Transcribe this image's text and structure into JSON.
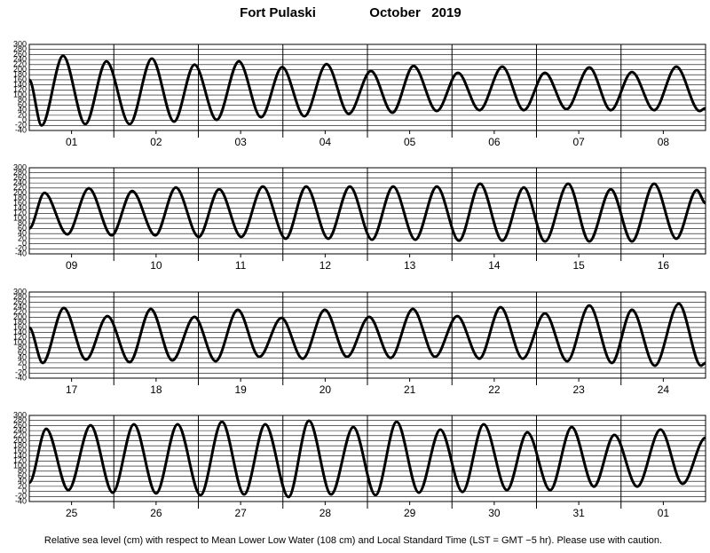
{
  "title": "Fort Pulaski",
  "date": "October   2019",
  "caption": "Relative sea level (cm) with respect to Mean Lower Low Water (108 cm) and Local Standard Time (LST = GMT −5 hr). Please use with caution.",
  "chart_data": [
    {
      "type": "line",
      "color": "#000000",
      "xlim": [
        0,
        192
      ],
      "ylim": [
        -40,
        300
      ],
      "yticks": [
        -40,
        -20,
        0,
        20,
        40,
        60,
        80,
        100,
        120,
        140,
        160,
        180,
        200,
        220,
        240,
        260,
        280,
        300
      ],
      "xticks": [
        {
          "value": 12,
          "label": "01"
        },
        {
          "value": 36,
          "label": "02"
        },
        {
          "value": 60,
          "label": "03"
        },
        {
          "value": 84,
          "label": "04"
        },
        {
          "value": 108,
          "label": "05"
        },
        {
          "value": 132,
          "label": "06"
        },
        {
          "value": 156,
          "label": "07"
        },
        {
          "value": 180,
          "label": "08"
        }
      ],
      "x": [
        0,
        3.5,
        9.6,
        15.9,
        21.9,
        28.5,
        34.8,
        41.1,
        46.9,
        53.2,
        59.5,
        65.8,
        71.8,
        78.1,
        84.4,
        90.7,
        97.0,
        103.1,
        109.1,
        115.7,
        121.7,
        127.8,
        134.3,
        140.4,
        146.4,
        152.5,
        159.0,
        165.1,
        171.1,
        177.4,
        183.7,
        190.3,
        192
      ],
      "values": [
        160,
        -20,
        255,
        -15,
        233,
        -15,
        244,
        -5,
        220,
        2,
        233,
        12,
        210,
        16,
        222,
        26,
        195,
        30,
        215,
        37,
        188,
        40,
        212,
        40,
        188,
        44,
        209,
        40,
        191,
        40,
        212,
        37,
        48
      ]
    },
    {
      "type": "line",
      "color": "#000000",
      "xlim": [
        0,
        192
      ],
      "ylim": [
        -40,
        300
      ],
      "yticks": [
        -40,
        -20,
        0,
        20,
        40,
        60,
        80,
        100,
        120,
        140,
        160,
        180,
        200,
        220,
        240,
        260,
        280,
        300
      ],
      "xticks": [
        {
          "value": 12,
          "label": "09"
        },
        {
          "value": 36,
          "label": "10"
        },
        {
          "value": 60,
          "label": "11"
        },
        {
          "value": 84,
          "label": "12"
        },
        {
          "value": 108,
          "label": "13"
        },
        {
          "value": 132,
          "label": "14"
        },
        {
          "value": 156,
          "label": "15"
        },
        {
          "value": 180,
          "label": "16"
        }
      ],
      "x": [
        0,
        4.3,
        10.8,
        16.9,
        23.4,
        29.2,
        35.8,
        41.6,
        48.1,
        53.9,
        60.2,
        66.3,
        72.8,
        78.6,
        84.9,
        91.0,
        97.3,
        103.3,
        109.6,
        115.7,
        122.0,
        128.0,
        134.3,
        140.4,
        146.4,
        153.0,
        159.0,
        165.1,
        171.1,
        177.4,
        183.7,
        189.5,
        192
      ],
      "values": [
        60,
        201,
        37,
        219,
        33,
        208,
        33,
        222,
        27,
        215,
        27,
        226,
        20,
        226,
        20,
        226,
        16,
        226,
        16,
        226,
        12,
        237,
        12,
        222,
        9,
        237,
        9,
        215,
        9,
        237,
        20,
        212,
        160
      ]
    },
    {
      "type": "line",
      "color": "#000000",
      "xlim": [
        0,
        192
      ],
      "ylim": [
        -40,
        300
      ],
      "yticks": [
        -40,
        -20,
        0,
        20,
        40,
        60,
        80,
        100,
        120,
        140,
        160,
        180,
        200,
        220,
        240,
        260,
        280,
        300
      ],
      "xticks": [
        {
          "value": 12,
          "label": "17"
        },
        {
          "value": 36,
          "label": "18"
        },
        {
          "value": 60,
          "label": "19"
        },
        {
          "value": 84,
          "label": "20"
        },
        {
          "value": 108,
          "label": "21"
        },
        {
          "value": 132,
          "label": "22"
        },
        {
          "value": 156,
          "label": "23"
        },
        {
          "value": 180,
          "label": "24"
        }
      ],
      "x": [
        0,
        3.8,
        9.8,
        16.1,
        22.2,
        28.5,
        34.5,
        40.6,
        46.9,
        52.9,
        59.2,
        65.3,
        71.6,
        77.6,
        83.9,
        90.2,
        96.5,
        102.6,
        108.9,
        115.2,
        121.5,
        127.8,
        133.8,
        140.1,
        146.4,
        152.7,
        159.0,
        165.4,
        171.1,
        177.6,
        184.4,
        190.7,
        192
      ],
      "values": [
        160,
        20,
        237,
        33,
        205,
        23,
        233,
        30,
        202,
        27,
        230,
        44,
        198,
        37,
        230,
        44,
        202,
        40,
        233,
        44,
        205,
        37,
        240,
        37,
        216,
        27,
        247,
        20,
        230,
        9,
        254,
        9,
        20
      ]
    },
    {
      "type": "line",
      "color": "#000000",
      "xlim": [
        0,
        192
      ],
      "ylim": [
        -40,
        300
      ],
      "yticks": [
        -40,
        -20,
        0,
        20,
        40,
        60,
        80,
        100,
        120,
        140,
        160,
        180,
        200,
        220,
        240,
        260,
        280,
        300
      ],
      "xticks": [
        {
          "value": 12,
          "label": "25"
        },
        {
          "value": 36,
          "label": "26"
        },
        {
          "value": 60,
          "label": "27"
        },
        {
          "value": 84,
          "label": "28"
        },
        {
          "value": 108,
          "label": "29"
        },
        {
          "value": 132,
          "label": "30"
        },
        {
          "value": 156,
          "label": "31"
        },
        {
          "value": 180,
          "label": "01"
        }
      ],
      "x": [
        0,
        4.8,
        11.1,
        17.4,
        23.7,
        29.7,
        36.0,
        42.1,
        48.6,
        54.7,
        61.0,
        67.0,
        73.6,
        79.4,
        85.7,
        92.0,
        98.3,
        104.3,
        110.6,
        116.7,
        123.0,
        129.0,
        135.6,
        141.4,
        147.9,
        154.0,
        160.3,
        166.1,
        172.6,
        179.2,
        185.5,
        192
      ],
      "values": [
        34,
        247,
        5,
        261,
        -5,
        265,
        -8,
        265,
        -15,
        275,
        -12,
        265,
        -22,
        279,
        -12,
        254,
        -15,
        275,
        -5,
        244,
        -2,
        265,
        5,
        233,
        5,
        254,
        19,
        223,
        19,
        244,
        30,
        212
      ]
    }
  ]
}
